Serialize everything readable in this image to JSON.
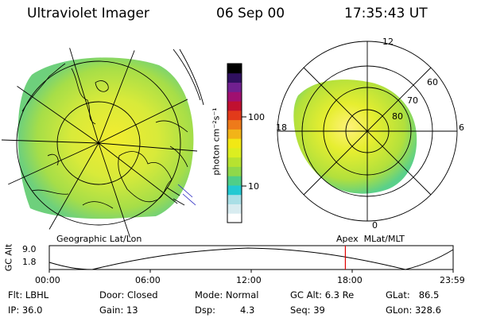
{
  "header": {
    "instrument": "Ultraviolet Imager",
    "date": "06 Sep 00",
    "time": "17:35:43 UT"
  },
  "colorbar": {
    "unit_label": "photon cm⁻²s⁻¹",
    "tick_100": "100",
    "tick_10": "10",
    "colors": [
      "#ffffff",
      "#d8ecf0",
      "#a9dfe6",
      "#22c9d2",
      "#4fce88",
      "#8fd84a",
      "#b7e230",
      "#dcee20",
      "#f2e814",
      "#f2b418",
      "#ee7a1a",
      "#e23a1a",
      "#c01030",
      "#a01070",
      "#702090",
      "#301060",
      "#000000"
    ]
  },
  "left_panel": {
    "projection_label": "Geographic Lat/Lon"
  },
  "right_panel": {
    "projection_label": "Apex  MLat/MLT",
    "mlt_labels": {
      "top": "12",
      "bottom": "0",
      "left": "18",
      "right": "6"
    },
    "lat_labels": [
      "60",
      "70",
      "80"
    ]
  },
  "altitude_plot": {
    "axis_title": "GC Alt",
    "y_ticks": [
      "9.0",
      "1.8"
    ],
    "x_ticks": [
      "00:00",
      "06:00",
      "12:00",
      "18:00",
      "23:59"
    ],
    "current_time_fraction": 0.7331,
    "marker_color": "#e00000"
  },
  "info": {
    "filter": "Flt: LBHL",
    "ip": "IP: 36.0",
    "door": "Door: Closed",
    "gain": "Gain: 13",
    "mode": "Mode: Normal",
    "dsp_label": "Dsp:",
    "dsp_value": "4.3",
    "gc_alt": "GC Alt: 6.3 Re",
    "seq": "Seq: 39",
    "glat": "GLat:   86.5",
    "glon": "GLon: 328.6"
  }
}
